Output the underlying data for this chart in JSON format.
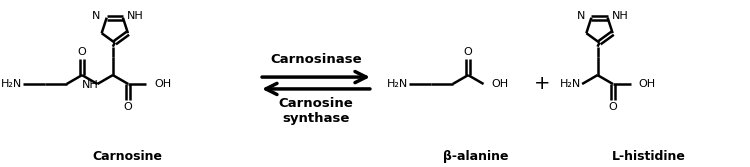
{
  "background_color": "#ffffff",
  "label_carnosine": "Carnosine",
  "label_beta_alanine": "β-alanine",
  "label_l_histidine": "L-histidine",
  "arrow_forward_label": "Carnosinase",
  "arrow_reverse_label": "Carnosine\nsynthase",
  "figsize": [
    7.5,
    1.67
  ],
  "dpi": 100
}
